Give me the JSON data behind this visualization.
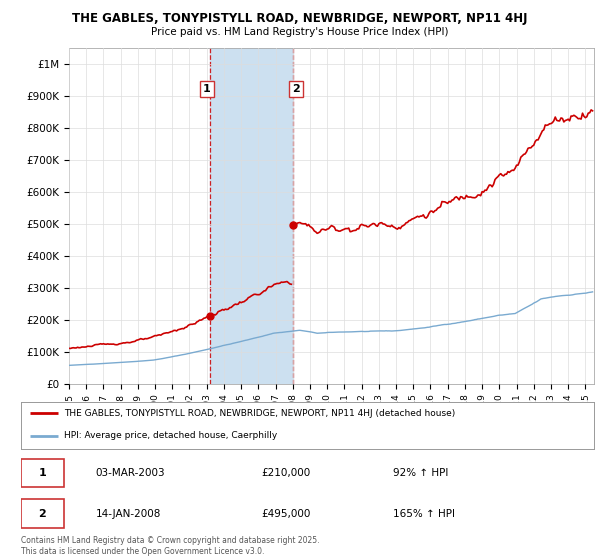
{
  "title_line1": "THE GABLES, TONYPISTYLL ROAD, NEWBRIDGE, NEWPORT, NP11 4HJ",
  "title_line2": "Price paid vs. HM Land Registry's House Price Index (HPI)",
  "ylim": [
    0,
    1050000
  ],
  "xlim_start": 1995.0,
  "xlim_end": 2025.5,
  "hpi_color": "#7aaad0",
  "price_color": "#cc0000",
  "background_color": "#ffffff",
  "grid_color": "#dddddd",
  "span_color": "#cce0f0",
  "purchase1_date": 2003.17,
  "purchase1_price": 210000,
  "purchase2_date": 2008.04,
  "purchase2_price": 495000,
  "legend_label_price": "THE GABLES, TONYPISTYLL ROAD, NEWBRIDGE, NEWPORT, NP11 4HJ (detached house)",
  "legend_label_hpi": "HPI: Average price, detached house, Caerphilly",
  "annotation1_label": "1",
  "annotation1_date_str": "03-MAR-2003",
  "annotation1_price_str": "£210,000",
  "annotation1_hpi_str": "92% ↑ HPI",
  "annotation2_label": "2",
  "annotation2_date_str": "14-JAN-2008",
  "annotation2_price_str": "£495,000",
  "annotation2_hpi_str": "165% ↑ HPI",
  "footer_text": "Contains HM Land Registry data © Crown copyright and database right 2025.\nThis data is licensed under the Open Government Licence v3.0.",
  "yticks": [
    0,
    100000,
    200000,
    300000,
    400000,
    500000,
    600000,
    700000,
    800000,
    900000,
    1000000
  ],
  "ytick_labels": [
    "£0",
    "£100K",
    "£200K",
    "£300K",
    "£400K",
    "£500K",
    "£600K",
    "£700K",
    "£800K",
    "£900K",
    "£1M"
  ]
}
